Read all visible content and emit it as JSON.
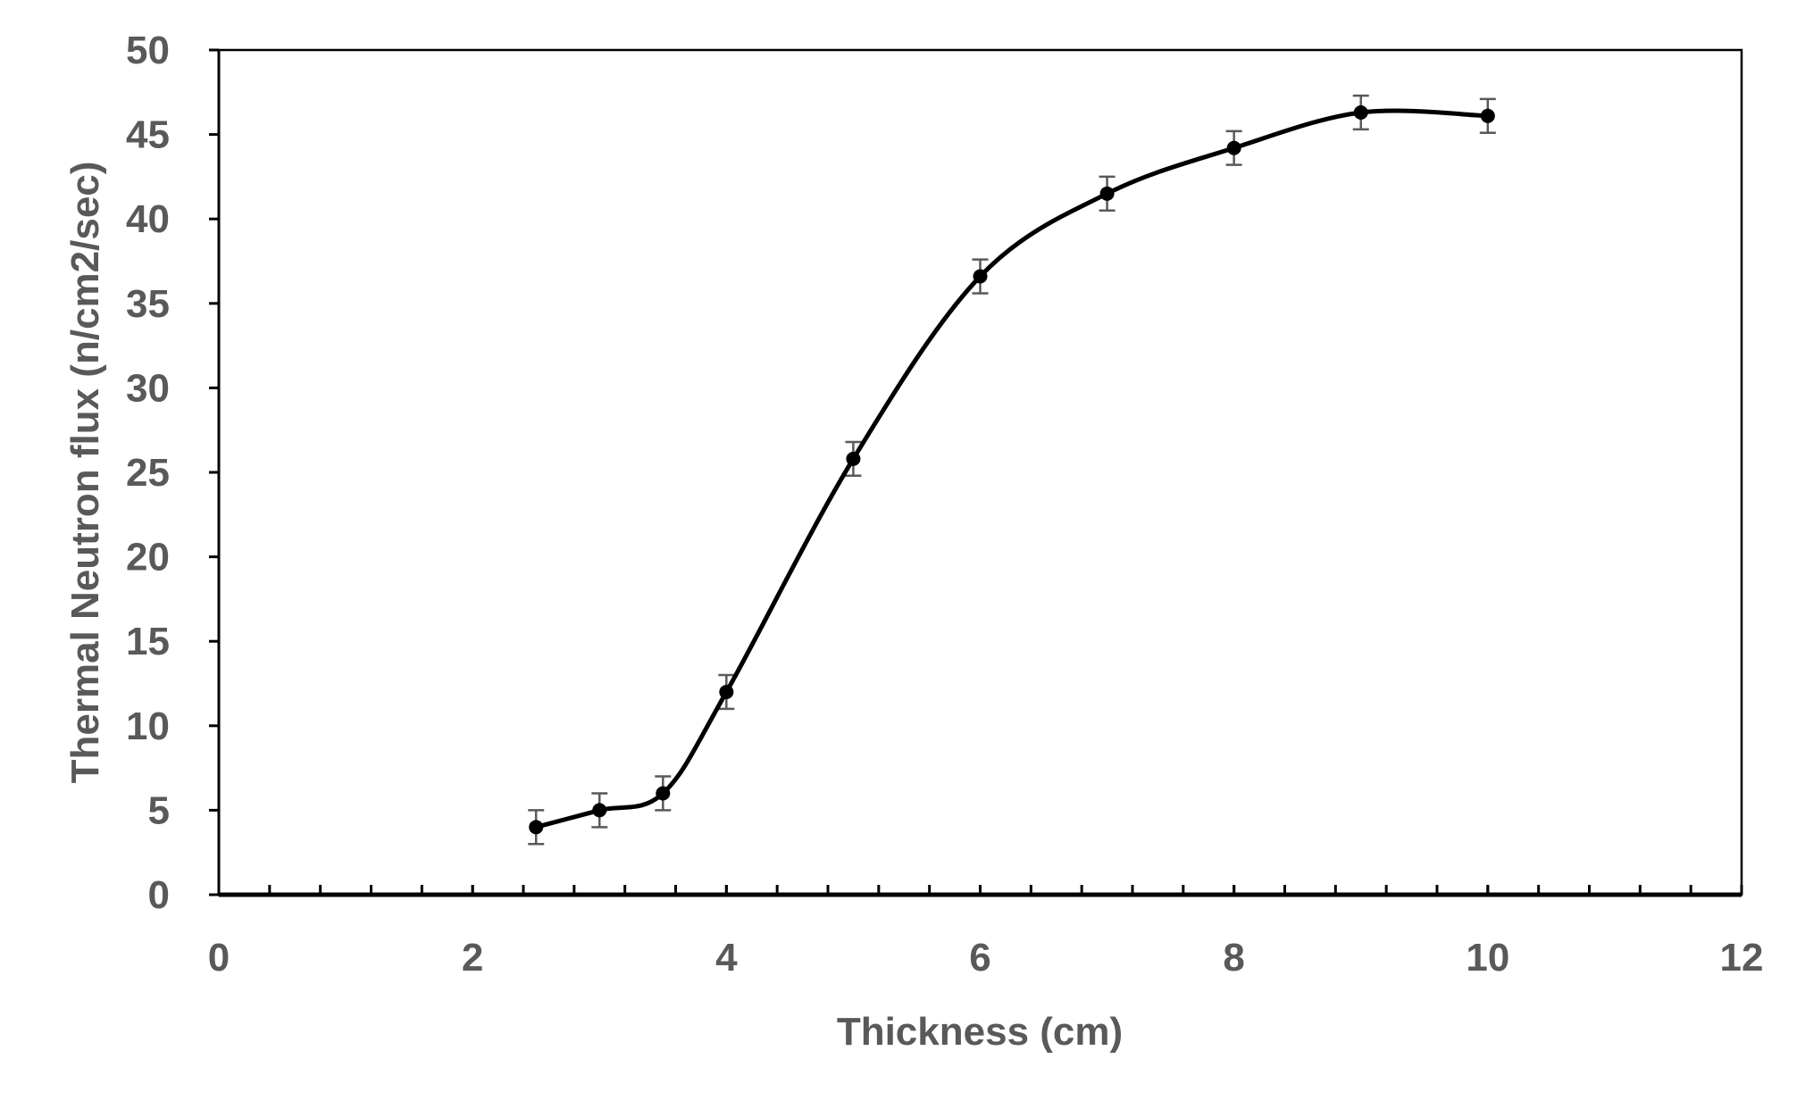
{
  "chart_data": {
    "type": "line",
    "title": "",
    "xlabel": "Thickness (cm)",
    "ylabel": "Thermal Neutron flux (n/cm2/sec)",
    "xlim": [
      0,
      12
    ],
    "ylim": [
      0,
      50
    ],
    "x_ticks": [
      "0",
      "2",
      "4",
      "6",
      "8",
      "10",
      "12"
    ],
    "y_ticks": [
      "0",
      "5",
      "10",
      "15",
      "20",
      "25",
      "30",
      "35",
      "40",
      "45",
      "50"
    ],
    "x_minor_step": 0.4,
    "grid": false,
    "legend": "none",
    "smooth": true,
    "error_bar": 1,
    "series": [
      {
        "x": [
          2.5,
          3,
          3.5,
          4,
          5,
          6,
          7,
          8,
          9,
          10
        ],
        "y": [
          4,
          5,
          6,
          12,
          25.8,
          36.6,
          41.5,
          44.2,
          46.3,
          46.1
        ]
      }
    ],
    "colors": {
      "line": "#000000",
      "axis": "#000000",
      "text": "#595959",
      "error": "#595959"
    }
  }
}
